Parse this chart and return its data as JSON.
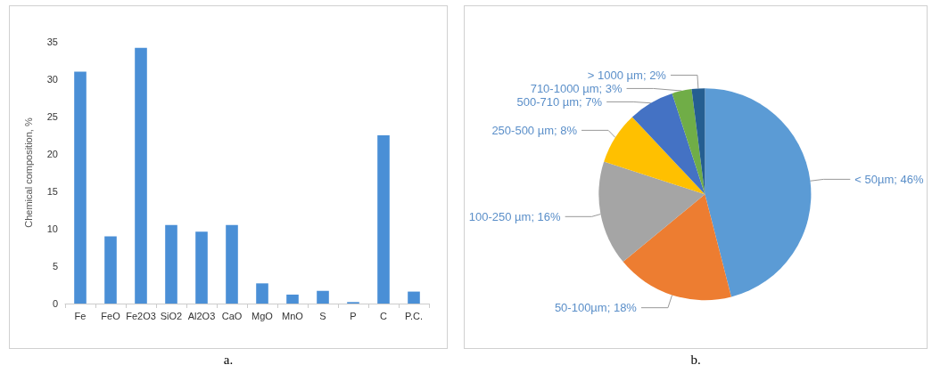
{
  "chart_data": [
    {
      "type": "bar",
      "ylabel": "Chemical composition, %",
      "categories": [
        "Fe",
        "FeO",
        "Fe2O3",
        "SiO2",
        "Al2O3",
        "CaO",
        "MgO",
        "MnO",
        "S",
        "P",
        "C",
        "P.C."
      ],
      "values": [
        31,
        9,
        34.2,
        10.5,
        9.6,
        10.5,
        2.7,
        1.2,
        1.7,
        0.2,
        22.5,
        1.6
      ],
      "color": "#4a8fd6",
      "ylim": [
        0,
        35
      ],
      "yticks": [
        0,
        5,
        10,
        15,
        20,
        25,
        30,
        35
      ],
      "grid": false,
      "annotations": [
        "a."
      ]
    },
    {
      "type": "pie",
      "categories": [
        "< 50µm",
        "50-100µm",
        "100-250 µm",
        "250-500 µm",
        "500-710 µm",
        "710-1000 µm",
        "> 1000 µm"
      ],
      "values": [
        46,
        18,
        16,
        8,
        7,
        3,
        2
      ],
      "value_labels": [
        "46%",
        "18%",
        "16%",
        "8%",
        "7%",
        "3%",
        "2%"
      ],
      "colors": [
        "#5b9bd5",
        "#ed7d31",
        "#a5a5a5",
        "#ffc000",
        "#4472c4",
        "#70ad47",
        "#255e91"
      ],
      "annotations": [
        "b."
      ]
    }
  ]
}
